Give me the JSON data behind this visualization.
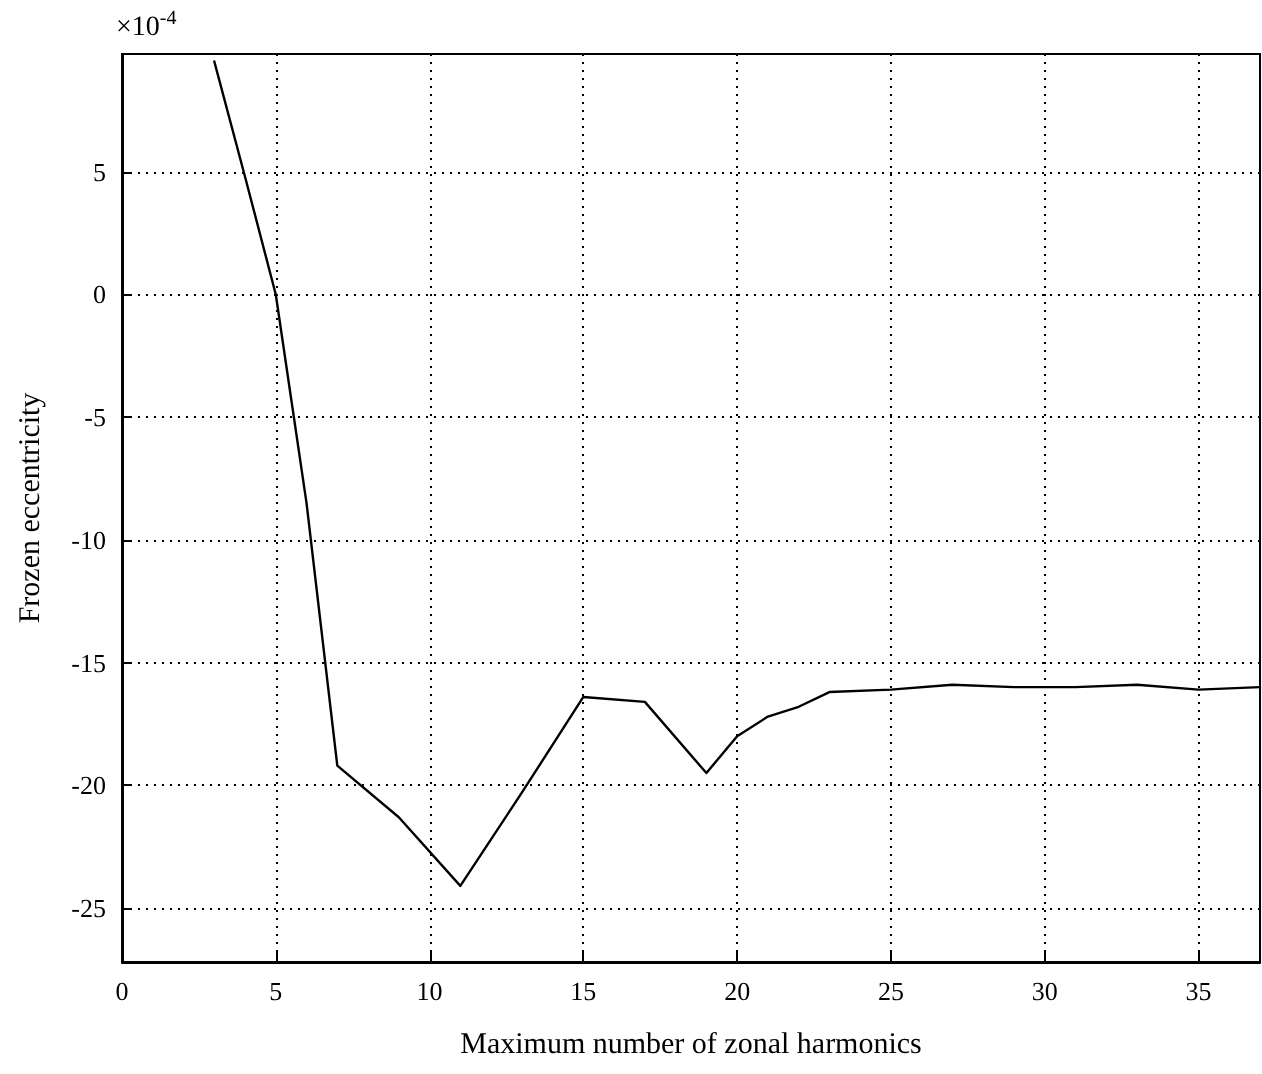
{
  "chart_data": {
    "type": "line",
    "xlabel": "Maximum number of zonal harmonics",
    "ylabel": "Frozen eccentricity",
    "annotations": [
      "×10$^{-4}$"
    ],
    "x": [
      3,
      4,
      5,
      6,
      7,
      9,
      11,
      13,
      15,
      17,
      19,
      20,
      21,
      22,
      23,
      25,
      27,
      29,
      31,
      33,
      35,
      37
    ],
    "series": [
      {
        "color": "#000000",
        "values": [
          9.5,
          4.8,
          0,
          -8.5,
          -19.2,
          -21.3,
          -24.1,
          -20.3,
          -16.4,
          -16.6,
          -19.5,
          -18,
          -17.2,
          -16.8,
          -16.2,
          -16.1,
          -15.9,
          -16.0,
          -16.0,
          -15.9,
          -16.1,
          -16.0
        ]
      }
    ],
    "xlim": [
      0,
      37
    ],
    "xticks": [
      0,
      5,
      10,
      15,
      20,
      25,
      30,
      35
    ],
    "ylim": [
      -27.2,
      9.8
    ],
    "yticks": [
      -25,
      -20,
      -15,
      -10,
      -5,
      0,
      5
    ],
    "grid": true,
    "marker": "none",
    "line_style": "solid"
  }
}
